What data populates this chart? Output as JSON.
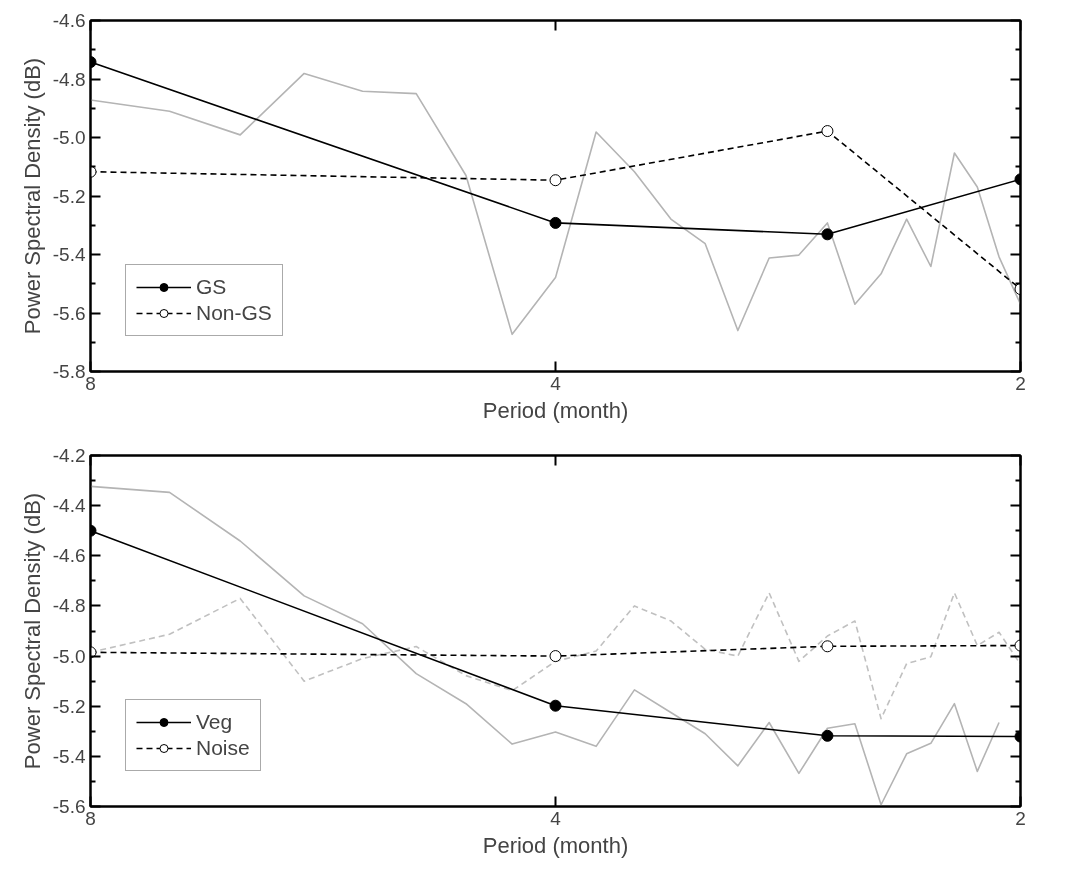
{
  "chart_data": [
    {
      "type": "line",
      "xlabel": "Period (month)",
      "ylabel": "Power Spectral Density (dB)",
      "log": "x",
      "xlim": [
        8,
        2
      ],
      "xticks": [
        8,
        4,
        2
      ],
      "ylim": [
        -5.8,
        -4.6
      ],
      "yticks": [
        -5.8,
        -5.6,
        -5.4,
        -5.2,
        {
          "value": -5.0,
          "label": "-5.0"
        },
        -4.8,
        -4.6
      ],
      "grid": false,
      "legend": "bottom left",
      "series": [
        {
          "color": "#b4b4b4",
          "line_style": "solid",
          "marker": "none",
          "x": [
            8,
            7.111,
            6.4,
            5.818,
            5.333,
            4.923,
            4.571,
            4.267,
            4,
            3.765,
            3.556,
            3.368,
            3.2,
            3.048,
            2.909,
            2.783,
            2.667,
            2.56,
            2.462,
            2.37,
            2.286,
            2.207,
            2.133,
            2.065,
            2
          ],
          "values": [
            -4.872,
            -4.91,
            -4.991,
            -4.781,
            -4.842,
            -4.85,
            -5.13,
            -5.673,
            -5.479,
            -4.981,
            -5.117,
            -5.279,
            -5.363,
            -5.66,
            -5.412,
            -5.402,
            -5.292,
            -5.57,
            -5.466,
            -5.279,
            -5.441,
            -5.053,
            -5.169,
            -5.408,
            -5.57
          ]
        },
        {
          "name": "GS",
          "color": "#000000",
          "line_style": "solid",
          "marker": "circle",
          "x": [
            8,
            4,
            2.667,
            2
          ],
          "values": [
            -4.742,
            -5.292,
            -5.331,
            -5.143
          ]
        },
        {
          "name": "Non-GS",
          "color": "#000000",
          "line_style": "dashed",
          "marker": "circle",
          "x": [
            8,
            4,
            2.667,
            2
          ],
          "values": [
            -5.117,
            -5.146,
            -4.978,
            -5.518
          ]
        }
      ]
    },
    {
      "type": "line",
      "xlabel": "Period (month)",
      "ylabel": "Power Spectral Density (dB)",
      "log": "x",
      "xlim": [
        8,
        2
      ],
      "xticks": [
        8,
        4,
        2
      ],
      "ylim": [
        -5.6,
        -4.2
      ],
      "yticks": [
        -5.6,
        -5.4,
        -5.2,
        {
          "value": -5.0,
          "label": "-5.0"
        },
        -4.8,
        -4.6,
        -4.4,
        -4.2
      ],
      "grid": false,
      "legend": "bottom left",
      "series": [
        {
          "color": "#b4b4b4",
          "line_style": "solid",
          "marker": "none",
          "x": [
            8,
            7.111,
            6.4,
            5.818,
            5.333,
            4.923,
            4.571,
            4.267,
            4,
            3.765,
            3.556,
            3.368,
            3.2,
            3.048,
            2.909,
            2.783,
            2.667,
            2.56,
            2.462,
            2.37,
            2.286,
            2.207,
            2.133,
            2.065
          ],
          "values": [
            -4.323,
            -4.347,
            -4.541,
            -4.76,
            -4.871,
            -5.07,
            -5.19,
            -5.351,
            -5.303,
            -5.36,
            -5.135,
            -5.225,
            -5.31,
            -5.438,
            -5.265,
            -5.468,
            -5.288,
            -5.27,
            -5.593,
            -5.39,
            -5.348,
            -5.19,
            -5.46,
            -5.265
          ]
        },
        {
          "color": "#c0c0c0",
          "line_style": "dashed",
          "marker": "none",
          "x": [
            8,
            7.111,
            6.4,
            5.818,
            5.333,
            4.923,
            4.571,
            4.267,
            4,
            3.765,
            3.556,
            3.368,
            3.2,
            3.048,
            2.909,
            2.783,
            2.667,
            2.56,
            2.462,
            2.37,
            2.286,
            2.207,
            2.133,
            2.065,
            2
          ],
          "values": [
            -4.985,
            -4.913,
            -4.77,
            -5.1,
            -5.01,
            -4.962,
            -5.078,
            -5.138,
            -5.021,
            -4.98,
            -4.8,
            -4.86,
            -4.973,
            -5.0,
            -4.748,
            -5.021,
            -4.92,
            -4.86,
            -5.25,
            -5.03,
            -5.003,
            -4.748,
            -4.958,
            -4.905,
            -5.033
          ]
        },
        {
          "name": "Veg",
          "color": "#000000",
          "line_style": "solid",
          "marker": "circle",
          "x": [
            8,
            4,
            2.667,
            2
          ],
          "values": [
            -4.5,
            -5.198,
            -5.318,
            -5.321
          ]
        },
        {
          "name": "Noise",
          "color": "#000000",
          "line_style": "dashed",
          "marker": "circle",
          "x": [
            8,
            4,
            2.667,
            2
          ],
          "values": [
            -4.985,
            -5.0,
            -4.961,
            -4.958
          ]
        }
      ]
    }
  ]
}
